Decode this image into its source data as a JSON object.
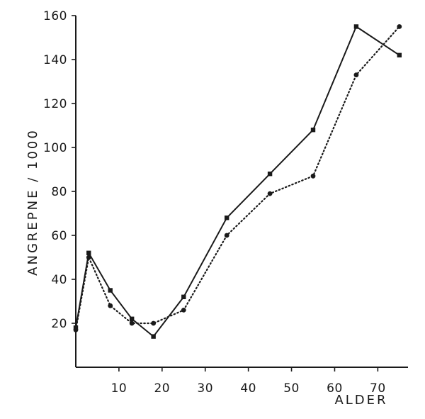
{
  "chart_data": {
    "type": "line",
    "title": "",
    "xlabel": "ALDER",
    "ylabel": "ANGREPNE / 1000",
    "xlim": [
      0,
      77
    ],
    "ylim": [
      0,
      160
    ],
    "x_ticks": [
      10,
      20,
      30,
      40,
      50,
      60,
      70
    ],
    "y_ticks": [
      20,
      40,
      60,
      80,
      100,
      120,
      140,
      160
    ],
    "grid": false,
    "legend": "none",
    "series": [
      {
        "style": "solid",
        "marker": "square",
        "color": "#1a1a1a",
        "x": [
          0,
          3,
          8,
          13,
          18,
          25,
          35,
          45,
          55,
          65,
          75
        ],
        "y": [
          18,
          52,
          35,
          22,
          14,
          32,
          68,
          88,
          108,
          155,
          142
        ]
      },
      {
        "style": "dotted",
        "marker": "circle",
        "color": "#1a1a1a",
        "x": [
          0,
          3,
          8,
          13,
          18,
          25,
          35,
          45,
          55,
          65,
          75
        ],
        "y": [
          17,
          50,
          28,
          20,
          20,
          26,
          60,
          79,
          87,
          133,
          155
        ]
      }
    ]
  }
}
